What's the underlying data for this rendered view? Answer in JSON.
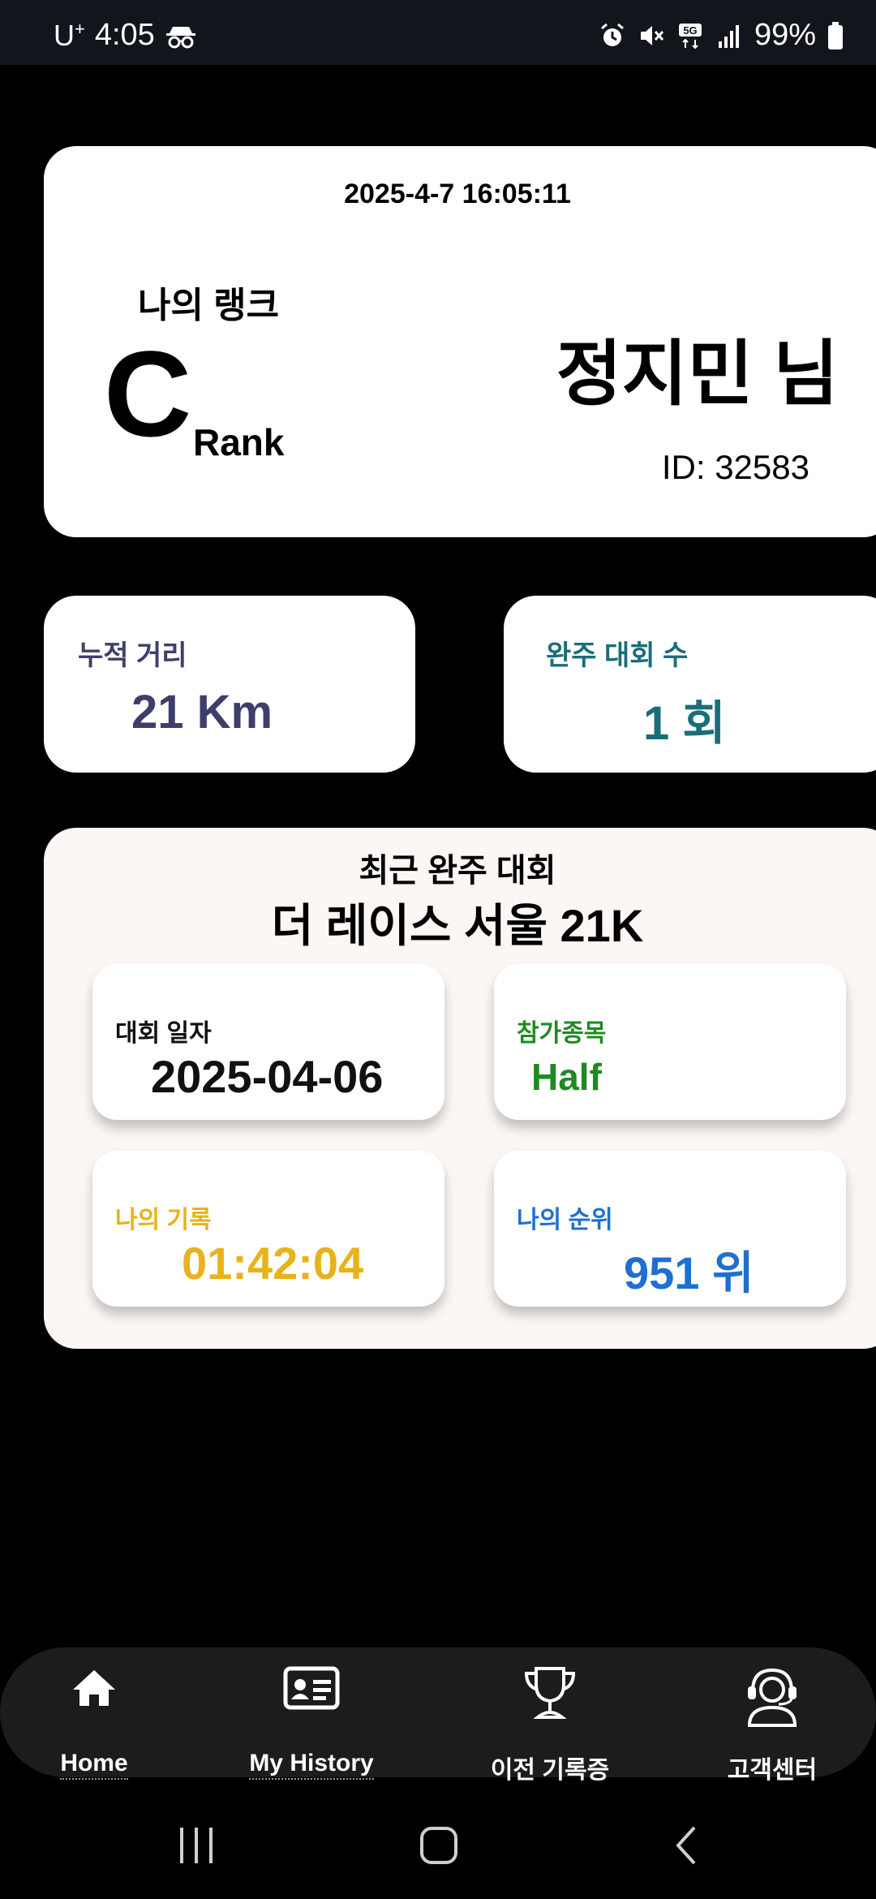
{
  "status_bar": {
    "carrier": "U",
    "carrier_sup": "+",
    "time": "4:05",
    "signal_label": "5G",
    "battery": "99%",
    "icons": [
      "incognito-icon",
      "alarm-icon",
      "mute-icon",
      "5g-icon",
      "signal-icon",
      "battery-icon"
    ]
  },
  "profile": {
    "datetime": "2025-4-7 16:05:11",
    "rank_title": "나의 랭크",
    "rank_letter": "C",
    "rank_suffix": "Rank",
    "name": "정지민 님",
    "id": "ID: 32583"
  },
  "stats": {
    "distance_label": "누적 거리",
    "distance_value": "21 Km",
    "races_label": "완주 대회 수",
    "races_value": "1 회"
  },
  "recent": {
    "title": "최근 완주 대회",
    "race_name": "더 레이스 서울 21K",
    "date_label": "대회 일자",
    "date_value": "2025-04-06",
    "event_label": "참가종목",
    "event_value": "Half",
    "record_label": "나의 기록",
    "record_value": "01:42:04",
    "place_label": "나의 순위",
    "place_value": "951 위"
  },
  "nav": {
    "home": "Home",
    "history": "My History",
    "previous": "이전 기록증",
    "support": "고객센터"
  },
  "colors": {
    "distance": "#3f3e6b",
    "races": "#1a6e79",
    "event": "#1f8a23",
    "record": "#e8b21a",
    "place": "#1f6fd1",
    "recent_bg": "#fcf6f4",
    "nav_bg": "#1c1c1c"
  }
}
